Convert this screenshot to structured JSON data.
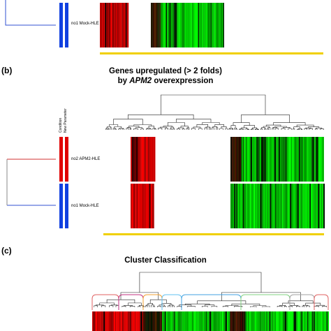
{
  "panels": [
    {
      "id": "a_partial",
      "label": "",
      "samples": [
        "no1 Mock-HLE"
      ]
    },
    {
      "id": "b",
      "label": "(b)",
      "title_line1": "Genes upregulated (> 2 folds)",
      "title_line2_prefix": "by ",
      "title_line2_gene": "APM2",
      "title_line2_suffix": " overexpression",
      "column_headers": [
        "Condition",
        "New Parameter"
      ],
      "samples": [
        "no2 APM2-HLE",
        "no1 Mock-HLE"
      ]
    },
    {
      "id": "c",
      "label": "(c)",
      "title": "Cluster Classification"
    }
  ],
  "colors": {
    "red": "#e00000",
    "green": "#00e000",
    "blue": "#1040e0",
    "yellow": "#f0d000",
    "dendro_red": "#d03030",
    "dendro_blue": "#3050d0"
  },
  "cluster_colors": [
    "#e06060",
    "#c03080",
    "#f0a030",
    "#60c0f0",
    "#40a0e0",
    "#80d080",
    "#a0a0a0"
  ]
}
